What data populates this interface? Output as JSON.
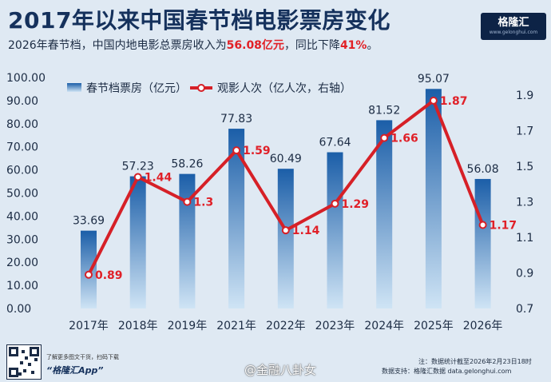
{
  "header": {
    "title": "2017年以来中国春节档电影票房变化",
    "subtitle_prefix": "2026年春节档，中国内地电影总票房收入为",
    "subtitle_value1": "56.08亿元",
    "subtitle_middle": "，同比下降",
    "subtitle_value2": "41%",
    "subtitle_suffix": "。",
    "logo_text": "格隆汇",
    "logo_url": "www.gelonghui.com"
  },
  "colors": {
    "bar_top": "#1b5ea8",
    "bar_bottom": "#cfe4f5",
    "line": "#d62027",
    "label_line": "#e02028",
    "title": "#15315c"
  },
  "chart_data": {
    "type": "bar",
    "categories": [
      "2017年",
      "2018年",
      "2019年",
      "2021年",
      "2022年",
      "2023年",
      "2024年",
      "2025年",
      "2026年"
    ],
    "series": [
      {
        "name": "春节档票房（亿元）",
        "type": "bar",
        "axis": "left",
        "values": [
          33.69,
          57.23,
          58.26,
          77.83,
          60.49,
          67.64,
          81.52,
          95.07,
          56.08
        ],
        "labels": [
          "33.69",
          "57.23",
          "58.26",
          "77.83",
          "60.49",
          "67.64",
          "81.52",
          "95.07",
          "56.08"
        ]
      },
      {
        "name": "观影人次（亿人次，右轴）",
        "type": "line",
        "axis": "right",
        "values": [
          0.89,
          1.44,
          1.3,
          1.59,
          1.14,
          1.29,
          1.66,
          1.87,
          1.17
        ],
        "labels": [
          "0.89",
          "1.44",
          "1.3",
          "1.59",
          "1.14",
          "1.29",
          "1.66",
          "1.87",
          "1.17"
        ]
      }
    ],
    "ylim": [
      0,
      100
    ],
    "yticks": [
      "0.00",
      "10.00",
      "20.00",
      "30.00",
      "40.00",
      "50.00",
      "60.00",
      "70.00",
      "80.00",
      "90.00",
      "100.00"
    ],
    "y2lim": [
      0.7,
      2.0
    ],
    "y2ticks": [
      "0.7",
      "0.9",
      "1.1",
      "1.3",
      "1.5",
      "1.7",
      "1.9"
    ],
    "legend_position": "top-left",
    "grid": false
  },
  "footer": {
    "app_hint": "了解更多图文干货，扫码下载",
    "app_name": "“格隆汇App”",
    "weibo": "@金融八卦女",
    "note1": "注：数据统计截至2026年2月23日18时",
    "note2": "数据支持：格隆汇数据 data.gelonghui.com"
  }
}
